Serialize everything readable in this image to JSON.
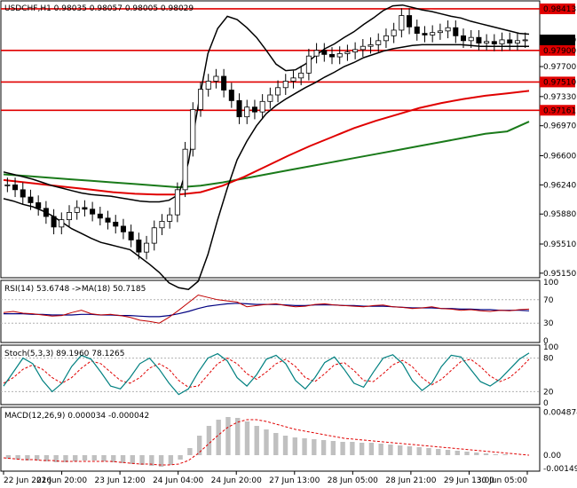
{
  "chart_data": {
    "type": "candlestick",
    "symbol_header": "USDCHF,H1  0.98035 0.98057 0.98005 0.98029",
    "x_tick_labels": [
      "22 Jun 2016",
      "22 Jun 20:00",
      "23 Jun 12:00",
      "24 Jun 04:00",
      "24 Jun 20:00",
      "27 Jun 13:00",
      "28 Jun 05:00",
      "28 Jun 21:00",
      "29 Jun 13:00",
      "30 Jun 05:00"
    ],
    "price_ylim": [
      0.95105,
      0.985
    ],
    "price_ticks": [
      0.9515,
      0.9551,
      0.9588,
      0.9624,
      0.966,
      0.9697,
      0.9733,
      0.977
    ],
    "price_tick_labels": [
      "0.95150",
      "0.95510",
      "0.95880",
      "0.96240",
      "0.96600",
      "0.96970",
      "0.97330",
      "0.97700"
    ],
    "horizontal_levels": [
      {
        "value": 0.98413,
        "label": "0.98413",
        "color": "#e00000"
      },
      {
        "value": 0.979,
        "label": "0.97900",
        "color": "#e00000"
      },
      {
        "value": 0.9751,
        "label": "0.97510",
        "color": "#e00000"
      },
      {
        "value": 0.97161,
        "label": "0.97161",
        "color": "#e00000"
      }
    ],
    "current_price": {
      "value": 0.98029,
      "label": "0.98029"
    },
    "closes": [
      0.9624,
      0.9618,
      0.9609,
      0.9602,
      0.9595,
      0.9585,
      0.9572,
      0.9581,
      0.959,
      0.9596,
      0.9594,
      0.9588,
      0.9583,
      0.9578,
      0.9573,
      0.9566,
      0.9556,
      0.9541,
      0.9552,
      0.9571,
      0.9579,
      0.9587,
      0.9618,
      0.9668,
      0.9717,
      0.9742,
      0.9752,
      0.9758,
      0.9741,
      0.9728,
      0.9708,
      0.972,
      0.9714,
      0.9727,
      0.9735,
      0.9744,
      0.9752,
      0.9756,
      0.9762,
      0.9783,
      0.979,
      0.9785,
      0.9782,
      0.9786,
      0.9788,
      0.9791,
      0.9795,
      0.9797,
      0.9802,
      0.9808,
      0.9815,
      0.9833,
      0.9819,
      0.9811,
      0.9809,
      0.9812,
      0.9814,
      0.9818,
      0.9808,
      0.9802,
      0.9806,
      0.9799,
      0.9801,
      0.9798,
      0.9803,
      0.9799,
      0.9802,
      0.9803
    ],
    "close_series_start_date": "22 Jun 2016",
    "bollinger_upper": [
      0.964,
      0.9637,
      0.9634,
      0.9631,
      0.9627,
      0.9623,
      0.962,
      0.9617,
      0.9614,
      0.9612,
      0.9611,
      0.961,
      0.9608,
      0.9606,
      0.9604,
      0.9603,
      0.9603,
      0.9605,
      0.9612,
      0.9652,
      0.9722,
      0.9786,
      0.9817,
      0.9832,
      0.9828,
      0.9818,
      0.9806,
      0.979,
      0.9773,
      0.9765,
      0.9766,
      0.9773,
      0.9783,
      0.9792,
      0.9798,
      0.9806,
      0.9813,
      0.9822,
      0.983,
      0.9839,
      0.9845,
      0.9846,
      0.9843,
      0.984,
      0.9838,
      0.9835,
      0.9832,
      0.983,
      0.9826,
      0.9823,
      0.982,
      0.9817,
      0.9814,
      0.9811,
      0.981
    ],
    "bollinger_lower": [
      0.9607,
      0.9604,
      0.96,
      0.9597,
      0.9592,
      0.9586,
      0.9578,
      0.957,
      0.9564,
      0.9558,
      0.9553,
      0.955,
      0.9547,
      0.9544,
      0.9535,
      0.9526,
      0.9516,
      0.9503,
      0.9497,
      0.9495,
      0.9505,
      0.9538,
      0.9581,
      0.962,
      0.9655,
      0.9678,
      0.9697,
      0.9712,
      0.9722,
      0.973,
      0.9737,
      0.9744,
      0.975,
      0.9757,
      0.9763,
      0.977,
      0.9775,
      0.9781,
      0.9785,
      0.9789,
      0.9792,
      0.9794,
      0.9796,
      0.9797,
      0.9797,
      0.9797,
      0.9797,
      0.9797,
      0.9796,
      0.9795,
      0.9795,
      0.9795,
      0.9795,
      0.9795,
      0.9795
    ],
    "ma_red": [
      0.963,
      0.9627,
      0.9624,
      0.9621,
      0.9618,
      0.9615,
      0.9613,
      0.9612,
      0.9612,
      0.9615,
      0.9623,
      0.9634,
      0.9647,
      0.966,
      0.9672,
      0.9683,
      0.9694,
      0.9703,
      0.9711,
      0.9719,
      0.9725,
      0.973,
      0.9734,
      0.9737,
      0.974
    ],
    "ma_green": [
      0.9637,
      0.9635,
      0.9633,
      0.9631,
      0.9629,
      0.9627,
      0.9625,
      0.9623,
      0.9621,
      0.9623,
      0.9627,
      0.9632,
      0.9637,
      0.9642,
      0.9647,
      0.9652,
      0.9657,
      0.9662,
      0.9667,
      0.9672,
      0.9677,
      0.9682,
      0.9687,
      0.969,
      0.9702
    ],
    "rsi": {
      "title": "RSI(14) 53.6748  ->MA(18) 50.7185",
      "ylim": [
        0,
        100
      ],
      "ticks": [
        100,
        70,
        30,
        0
      ],
      "tick_labels": [
        "100",
        "70",
        "30",
        "0"
      ],
      "rsi_values": [
        48,
        50,
        47,
        46,
        44,
        42,
        43,
        48,
        52,
        46,
        44,
        45,
        43,
        40,
        35,
        33,
        30,
        40,
        52,
        65,
        78,
        74,
        70,
        68,
        66,
        58,
        60,
        62,
        63,
        60,
        58,
        59,
        62,
        63,
        61,
        60,
        59,
        58,
        60,
        61,
        58,
        57,
        55,
        56,
        58,
        55,
        54,
        52,
        53,
        51,
        50,
        52,
        51,
        53,
        54
      ],
      "ma_values": [
        46,
        46,
        46,
        45,
        45,
        44,
        44,
        44,
        45,
        45,
        44,
        44,
        43,
        43,
        42,
        41,
        41,
        43,
        46,
        50,
        55,
        59,
        61,
        63,
        64,
        63,
        62,
        62,
        62,
        61,
        60,
        60,
        61,
        61,
        61,
        60,
        60,
        59,
        59,
        59,
        58,
        57,
        56,
        56,
        56,
        55,
        55,
        54,
        54,
        53,
        53,
        52,
        52,
        52,
        51
      ]
    },
    "stoch": {
      "title": "Stoch(5,3,3) 89.1960 78.1265",
      "ylim": [
        0,
        100
      ],
      "ticks": [
        100,
        80,
        20,
        0
      ],
      "tick_labels": [
        "100",
        "80",
        "20",
        "0"
      ],
      "main": [
        30,
        55,
        80,
        70,
        40,
        20,
        35,
        65,
        85,
        78,
        55,
        30,
        25,
        45,
        70,
        80,
        60,
        35,
        15,
        25,
        55,
        80,
        88,
        75,
        45,
        30,
        50,
        78,
        85,
        70,
        40,
        25,
        45,
        72,
        82,
        60,
        35,
        28,
        55,
        80,
        86,
        70,
        40,
        22,
        35,
        65,
        85,
        82,
        60,
        38,
        30,
        42,
        60,
        78,
        89
      ],
      "signal": [
        35,
        45,
        60,
        68,
        60,
        45,
        35,
        45,
        62,
        75,
        70,
        55,
        40,
        35,
        45,
        62,
        70,
        60,
        40,
        28,
        30,
        50,
        70,
        80,
        70,
        52,
        42,
        55,
        70,
        78,
        65,
        45,
        38,
        52,
        68,
        72,
        58,
        40,
        38,
        52,
        68,
        76,
        65,
        45,
        32,
        42,
        58,
        74,
        78,
        65,
        48,
        38,
        45,
        60,
        78
      ]
    },
    "macd": {
      "title": "MACD(12,26,9) 0.000034 -0.000042",
      "ylim": [
        -0.0016,
        0.0052
      ],
      "ticks": [
        0.004874,
        0.0,
        -0.001492
      ],
      "tick_labels": [
        "0.004874",
        "0.00",
        "-0.001492"
      ],
      "histogram": [
        -0.0004,
        -0.0005,
        -0.0006,
        -0.0006,
        -0.0007,
        -0.0008,
        -0.0008,
        -0.0007,
        -0.0006,
        -0.0006,
        -0.0007,
        -0.0008,
        -0.0009,
        -0.001,
        -0.0011,
        -0.0012,
        -0.0013,
        -0.0011,
        -0.0005,
        0.0008,
        0.0022,
        0.0033,
        0.004,
        0.0043,
        0.0042,
        0.0038,
        0.0033,
        0.0029,
        0.0025,
        0.0022,
        0.002,
        0.0019,
        0.0018,
        0.0017,
        0.0016,
        0.0015,
        0.0015,
        0.0014,
        0.0014,
        0.0013,
        0.0012,
        0.0011,
        0.001,
        0.0009,
        0.0008,
        0.0007,
        0.0006,
        0.0005,
        0.0004,
        0.0003,
        0.0002,
        0.0001,
        0.0001,
        0.0,
        0.0
      ],
      "signal": [
        -0.0003,
        -0.0004,
        -0.0005,
        -0.0005,
        -0.0006,
        -0.0006,
        -0.0007,
        -0.0007,
        -0.0007,
        -0.0007,
        -0.0007,
        -0.0007,
        -0.0008,
        -0.0009,
        -0.001,
        -0.001,
        -0.0011,
        -0.0011,
        -0.001,
        -0.0006,
        0.0002,
        0.0012,
        0.0022,
        0.0031,
        0.0037,
        0.004,
        0.004,
        0.0038,
        0.0035,
        0.0032,
        0.0029,
        0.0027,
        0.0025,
        0.0023,
        0.0021,
        0.0019,
        0.0018,
        0.0017,
        0.0016,
        0.0015,
        0.0014,
        0.0013,
        0.0012,
        0.0011,
        0.001,
        0.0009,
        0.0008,
        0.0007,
        0.0006,
        0.0005,
        0.0004,
        0.0003,
        0.0002,
        0.0001,
        0.0
      ]
    },
    "colors": {
      "candle": "#000000",
      "bollinger": "#000000",
      "ma_fast": "#000000",
      "ma_mid": "#008000",
      "ma_red": "#e00000",
      "ma_green": "#1a7a1a",
      "levels": "#e00000",
      "rsi_line": "#c00000",
      "rsi_ma": "#000080",
      "stoch_main": "#008080",
      "stoch_signal": "#e00000",
      "macd_hist": "#c0c0c0",
      "macd_signal": "#e00000"
    }
  }
}
